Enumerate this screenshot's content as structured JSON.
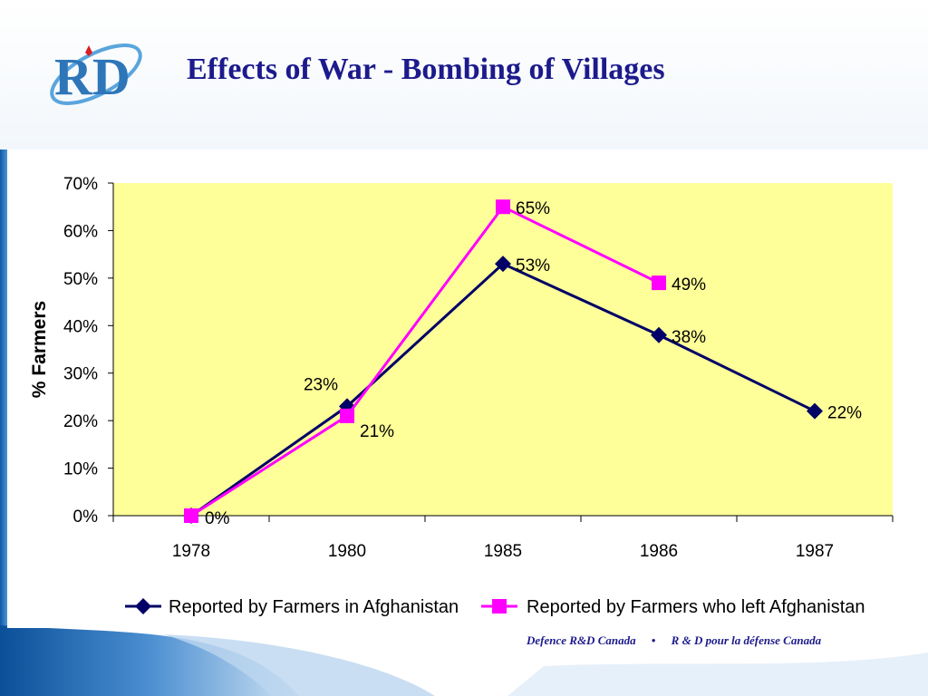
{
  "slide": {
    "title": "Effects of War - Bombing of Villages",
    "footer_left": "Defence R&D Canada",
    "footer_sep": "•",
    "footer_right": "R & D pour la défense Canada",
    "logo_text": "RD"
  },
  "colors": {
    "title": "#1c1a8c",
    "plot_bg": "#ffff99",
    "series_1": "#000066",
    "series_2": "#ff00ff",
    "accent_blue": "#2e76b8"
  },
  "chart_data": {
    "type": "line",
    "categories": [
      "1978",
      "1980",
      "1985",
      "1986",
      "1987"
    ],
    "ylabel": "% Farmers",
    "ylim": [
      0,
      70
    ],
    "yticks": [
      "0%",
      "10%",
      "20%",
      "30%",
      "40%",
      "50%",
      "60%",
      "70%"
    ],
    "grid": false,
    "legend_position": "bottom",
    "series": [
      {
        "name": "Reported by Farmers in Afghanistan",
        "marker": "diamond",
        "values": [
          0,
          23,
          53,
          38,
          22
        ],
        "labels": [
          "0%",
          "23%",
          "53%",
          "38%",
          "22%"
        ]
      },
      {
        "name": "Reported by Farmers who left Afghanistan",
        "marker": "square",
        "values": [
          0,
          21,
          65,
          49,
          null
        ],
        "labels": [
          "0%",
          "21%",
          "65%",
          "49%",
          ""
        ]
      }
    ]
  }
}
